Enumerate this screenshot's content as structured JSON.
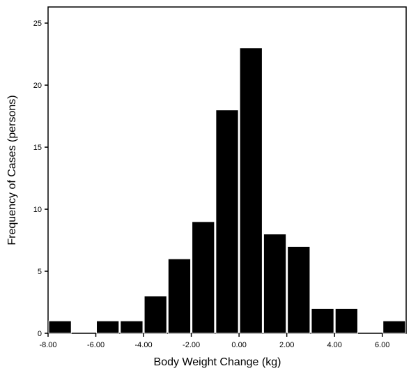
{
  "chart_data": {
    "type": "bar",
    "xlabel": "Body Weight Change (kg)",
    "ylabel": "Frequency of Cases (persons)",
    "xlim": [
      -8,
      7
    ],
    "ylim": [
      0,
      26.3
    ],
    "bin_width": 1,
    "x_ticks": [
      -8,
      -6,
      -4,
      -2,
      0,
      2,
      4,
      6
    ],
    "x_tick_labels": [
      "-8.00",
      "-6.00",
      "-4.00",
      "-2.00",
      "0.00",
      "2.00",
      "4.00",
      "6.00"
    ],
    "y_ticks": [
      0,
      5,
      10,
      15,
      20,
      25
    ],
    "y_tick_labels": [
      "0",
      "5",
      "10",
      "15",
      "20",
      "25"
    ],
    "bins": [
      {
        "x_start": -8,
        "x_end": -7,
        "value": 1
      },
      {
        "x_start": -7,
        "x_end": -6,
        "value": 0
      },
      {
        "x_start": -6,
        "x_end": -5,
        "value": 1
      },
      {
        "x_start": -5,
        "x_end": -4,
        "value": 1
      },
      {
        "x_start": -4,
        "x_end": -3,
        "value": 3
      },
      {
        "x_start": -3,
        "x_end": -2,
        "value": 6
      },
      {
        "x_start": -2,
        "x_end": -1,
        "value": 9
      },
      {
        "x_start": -1,
        "x_end": 0,
        "value": 18
      },
      {
        "x_start": 0,
        "x_end": 1,
        "value": 23
      },
      {
        "x_start": 1,
        "x_end": 2,
        "value": 8
      },
      {
        "x_start": 2,
        "x_end": 3,
        "value": 7
      },
      {
        "x_start": 3,
        "x_end": 4,
        "value": 2
      },
      {
        "x_start": 4,
        "x_end": 5,
        "value": 2
      },
      {
        "x_start": 5,
        "x_end": 6,
        "value": 0
      },
      {
        "x_start": 6,
        "x_end": 7,
        "value": 1
      }
    ],
    "grid": false,
    "legend": "none",
    "bar_color": "#000000",
    "bar_edge_color": "#ffffff"
  }
}
